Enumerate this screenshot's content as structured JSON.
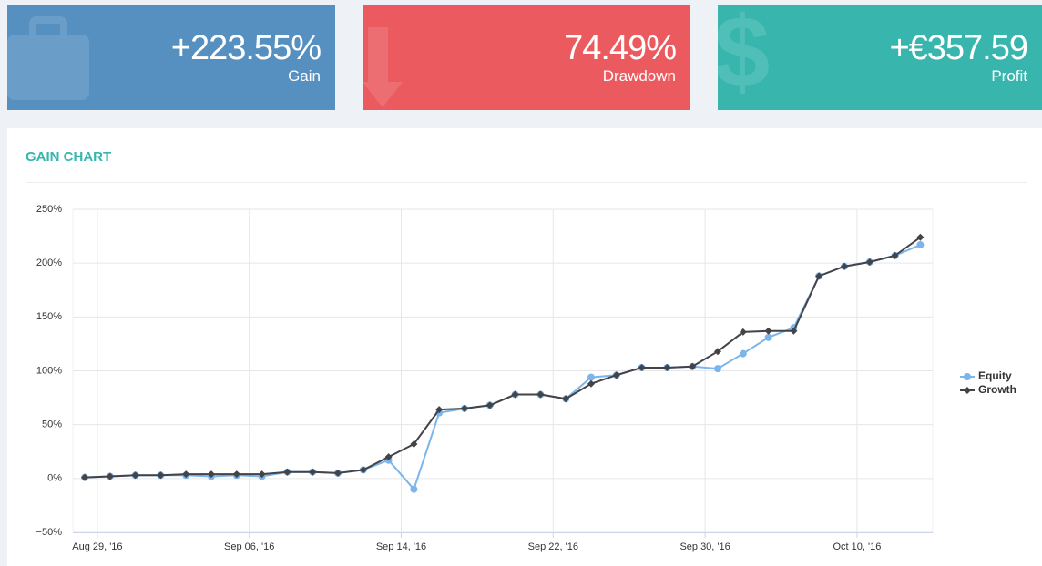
{
  "cards": [
    {
      "value": "+223.55%",
      "label": "Gain"
    },
    {
      "value": "74.49%",
      "label": "Drawdown"
    },
    {
      "value": "+€357.59",
      "label": "Profit"
    }
  ],
  "chart_data": {
    "type": "line",
    "title": "GAIN CHART",
    "x": [
      "2016-08-26",
      "2016-08-29",
      "2016-08-30",
      "2016-08-31",
      "2016-09-01",
      "2016-09-02",
      "2016-09-05",
      "2016-09-06",
      "2016-09-07",
      "2016-09-08",
      "2016-09-09",
      "2016-09-12",
      "2016-09-13",
      "2016-09-14",
      "2016-09-15",
      "2016-09-16",
      "2016-09-19",
      "2016-09-20",
      "2016-09-21",
      "2016-09-22",
      "2016-09-23",
      "2016-09-26",
      "2016-09-27",
      "2016-09-28",
      "2016-09-29",
      "2016-09-30",
      "2016-10-03",
      "2016-10-04",
      "2016-10-05",
      "2016-10-06",
      "2016-10-07",
      "2016-10-10",
      "2016-10-11",
      "2016-10-12"
    ],
    "series": [
      {
        "name": "Equity",
        "color": "#7cb5ec",
        "values": [
          1,
          2,
          3,
          3,
          3,
          2,
          3,
          2,
          6,
          6,
          5,
          8,
          17,
          -10,
          61,
          65,
          68,
          78,
          78,
          74,
          94,
          96,
          103,
          103,
          104,
          102,
          116,
          131,
          140,
          188,
          197,
          201,
          207,
          217
        ]
      },
      {
        "name": "Growth",
        "color": "#434348",
        "values": [
          1,
          2,
          3,
          3,
          4,
          4,
          4,
          4,
          6,
          6,
          5,
          8,
          20,
          32,
          64,
          65,
          68,
          78,
          78,
          74,
          88,
          96,
          103,
          103,
          104,
          118,
          136,
          137,
          137,
          188,
          197,
          201,
          207,
          224
        ]
      }
    ],
    "ylim": [
      -50,
      250
    ],
    "yticks": [
      {
        "value": -50,
        "label": "−50%"
      },
      {
        "value": 0,
        "label": "0%"
      },
      {
        "value": 50,
        "label": "50%"
      },
      {
        "value": 100,
        "label": "100%"
      },
      {
        "value": 150,
        "label": "150%"
      },
      {
        "value": 200,
        "label": "200%"
      },
      {
        "value": 250,
        "label": "250%"
      }
    ],
    "xticks": [
      {
        "value": "2016-08-29",
        "label": "Aug 29, '16"
      },
      {
        "value": "2016-09-06",
        "label": "Sep 06, '16"
      },
      {
        "value": "2016-09-14",
        "label": "Sep 14, '16"
      },
      {
        "value": "2016-09-22",
        "label": "Sep 22, '16"
      },
      {
        "value": "2016-09-30",
        "label": "Sep 30, '16"
      },
      {
        "value": "2016-10-10",
        "label": "Oct 10, '16"
      }
    ],
    "grid": true,
    "legend": "right"
  }
}
